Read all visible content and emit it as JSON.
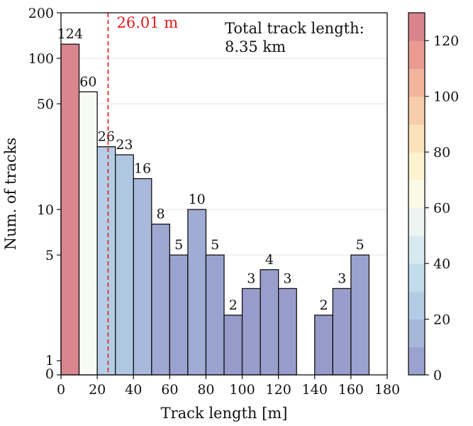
{
  "chart_data": {
    "type": "bar",
    "xlabel": "Track length [m]",
    "ylabel": "Num. of tracks",
    "xlim": [
      0,
      180
    ],
    "x_ticks": [
      0,
      20,
      40,
      60,
      80,
      100,
      120,
      140,
      160,
      180
    ],
    "yscale": "symlog",
    "ylim": [
      0,
      200
    ],
    "y_ticks": [
      0,
      1,
      5,
      10,
      50,
      100,
      200
    ],
    "bin_width": 10,
    "bins": [
      {
        "start": 0,
        "end": 10,
        "value": 124,
        "label": "124"
      },
      {
        "start": 10,
        "end": 20,
        "value": 60,
        "label": "60"
      },
      {
        "start": 20,
        "end": 30,
        "value": 26,
        "label": "26"
      },
      {
        "start": 30,
        "end": 40,
        "value": 23,
        "label": "23"
      },
      {
        "start": 40,
        "end": 50,
        "value": 16,
        "label": "16"
      },
      {
        "start": 50,
        "end": 60,
        "value": 8,
        "label": "8"
      },
      {
        "start": 60,
        "end": 70,
        "value": 5,
        "label": "5"
      },
      {
        "start": 70,
        "end": 80,
        "value": 10,
        "label": "10"
      },
      {
        "start": 80,
        "end": 90,
        "value": 5,
        "label": "5"
      },
      {
        "start": 90,
        "end": 100,
        "value": 2,
        "label": "2"
      },
      {
        "start": 100,
        "end": 110,
        "value": 3,
        "label": "3"
      },
      {
        "start": 110,
        "end": 120,
        "value": 4,
        "label": "4"
      },
      {
        "start": 120,
        "end": 130,
        "value": 3,
        "label": "3"
      },
      {
        "start": 140,
        "end": 150,
        "value": 2,
        "label": "2"
      },
      {
        "start": 150,
        "end": 160,
        "value": 3,
        "label": "3"
      },
      {
        "start": 160,
        "end": 170,
        "value": 5,
        "label": "5"
      }
    ],
    "reference_line": {
      "x": 26.01,
      "label": "26.01 m",
      "color": "#e41a1c",
      "style": "dashed"
    },
    "annotation": [
      "Total track length:",
      "8.35 km"
    ],
    "colorbar": {
      "min": 0,
      "max": 130,
      "step": 10,
      "ticks": [
        0,
        20,
        40,
        60,
        80,
        100,
        120
      ],
      "colormap": "RdYlBu_r-like",
      "stops": [
        {
          "v": 0,
          "color": "#9497c9"
        },
        {
          "v": 30,
          "color": "#b9d6ea"
        },
        {
          "v": 60,
          "color": "#f7fbf4"
        },
        {
          "v": 70,
          "color": "#fdfbd8"
        },
        {
          "v": 90,
          "color": "#fbd9b2"
        },
        {
          "v": 110,
          "color": "#f0a794"
        },
        {
          "v": 130,
          "color": "#d2788c"
        }
      ]
    },
    "grid": "y-major",
    "legend": "none"
  }
}
